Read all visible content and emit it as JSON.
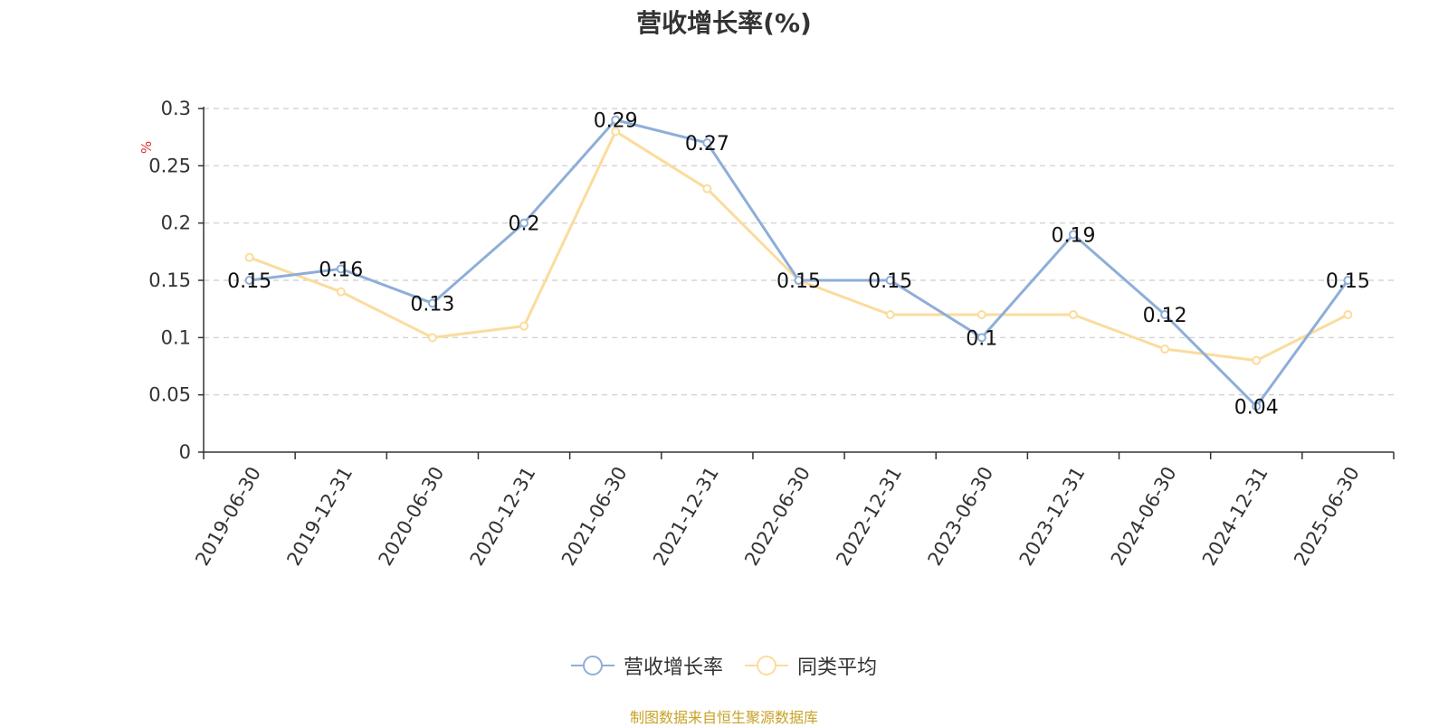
{
  "title": "营收增长率(%)",
  "source": "制图数据来自恒生聚源数据库",
  "chart_data": {
    "type": "line",
    "title": "营收增长率(%)",
    "ylabel": "%",
    "ylim": [
      0,
      0.3
    ],
    "yticks": [
      0,
      0.05,
      0.1,
      0.15,
      0.2,
      0.25,
      0.3
    ],
    "grid": true,
    "legend_position": "bottom",
    "categories": [
      "2019-06-30",
      "2019-12-31",
      "2020-06-30",
      "2020-12-31",
      "2021-06-30",
      "2021-12-31",
      "2022-06-30",
      "2022-12-31",
      "2023-06-30",
      "2023-12-31",
      "2024-06-30",
      "2024-12-31",
      "2025-06-30"
    ],
    "series": [
      {
        "name": "营收增长率",
        "color": "#8eaed8",
        "show_labels": true,
        "values": [
          0.15,
          0.16,
          0.13,
          0.2,
          0.29,
          0.27,
          0.15,
          0.15,
          0.1,
          0.19,
          0.12,
          0.04,
          0.15
        ]
      },
      {
        "name": "同类平均",
        "color": "#fbdc9c",
        "show_labels": false,
        "values": [
          0.17,
          0.14,
          0.1,
          0.11,
          0.28,
          0.23,
          0.15,
          0.12,
          0.12,
          0.12,
          0.09,
          0.08,
          0.12
        ]
      }
    ]
  }
}
